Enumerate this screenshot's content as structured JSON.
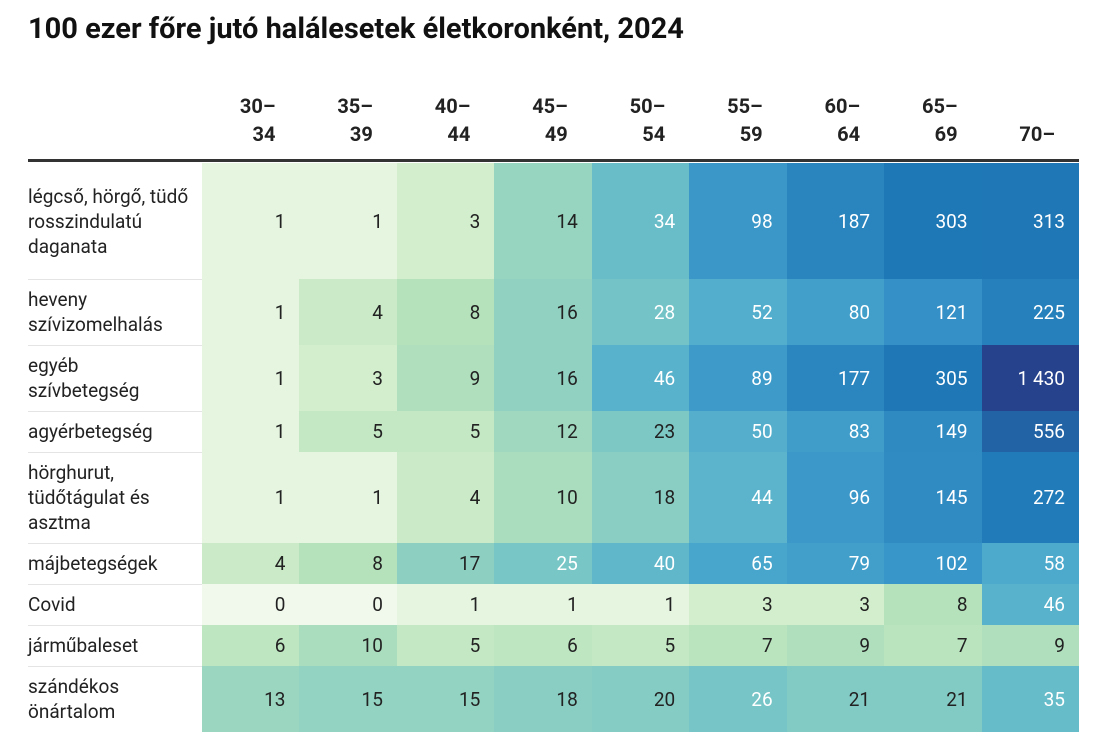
{
  "title": "100 ezer főre jutó halálesetek életkoronként, 2024",
  "table": {
    "columns": [
      [
        "30–",
        "34"
      ],
      [
        "35–",
        "39"
      ],
      [
        "40–",
        "44"
      ],
      [
        "45–",
        "49"
      ],
      [
        "50–",
        "54"
      ],
      [
        "55–",
        "59"
      ],
      [
        "60–",
        "64"
      ],
      [
        "65–",
        "69"
      ],
      [
        "70–"
      ]
    ],
    "rows": [
      {
        "label": "légcső, hörgő, tüdő rosszindulatú daganata",
        "values": [
          1,
          1,
          3,
          14,
          34,
          98,
          187,
          303,
          313
        ]
      },
      {
        "label": "heveny szívizomelhalás",
        "values": [
          1,
          4,
          8,
          16,
          28,
          52,
          80,
          121,
          225
        ]
      },
      {
        "label": "egyéb szívbetegség",
        "values": [
          1,
          3,
          9,
          16,
          46,
          89,
          177,
          305,
          {
            "value": 1430,
            "label": "1 430"
          }
        ]
      },
      {
        "label": "agyérbetegség",
        "values": [
          1,
          5,
          5,
          12,
          23,
          50,
          83,
          149,
          556
        ]
      },
      {
        "label": "hörghurut, tüdőtágulat és asztma",
        "values": [
          1,
          1,
          4,
          10,
          18,
          44,
          96,
          145,
          272
        ]
      },
      {
        "label": "májbetegségek",
        "values": [
          4,
          8,
          17,
          25,
          40,
          65,
          79,
          102,
          58
        ]
      },
      {
        "label": "Covid",
        "values": [
          0,
          0,
          1,
          1,
          1,
          3,
          3,
          8,
          46
        ]
      },
      {
        "label": "járműbaleset",
        "values": [
          6,
          10,
          5,
          6,
          5,
          7,
          9,
          7,
          9
        ]
      },
      {
        "label": "szándékos önártalom",
        "values": [
          13,
          15,
          15,
          18,
          20,
          26,
          21,
          21,
          35
        ]
      }
    ],
    "color_scale": [
      [
        0,
        "#f0f9ec"
      ],
      [
        1,
        "#e5f5e0"
      ],
      [
        3,
        "#d3eecd"
      ],
      [
        8,
        "#b5e2bb"
      ],
      [
        15,
        "#93d3c1"
      ],
      [
        30,
        "#6fc1c8"
      ],
      [
        60,
        "#4ba9cd"
      ],
      [
        120,
        "#3490c6"
      ],
      [
        300,
        "#1f78b6"
      ],
      [
        1430,
        "#27428c"
      ]
    ]
  }
}
